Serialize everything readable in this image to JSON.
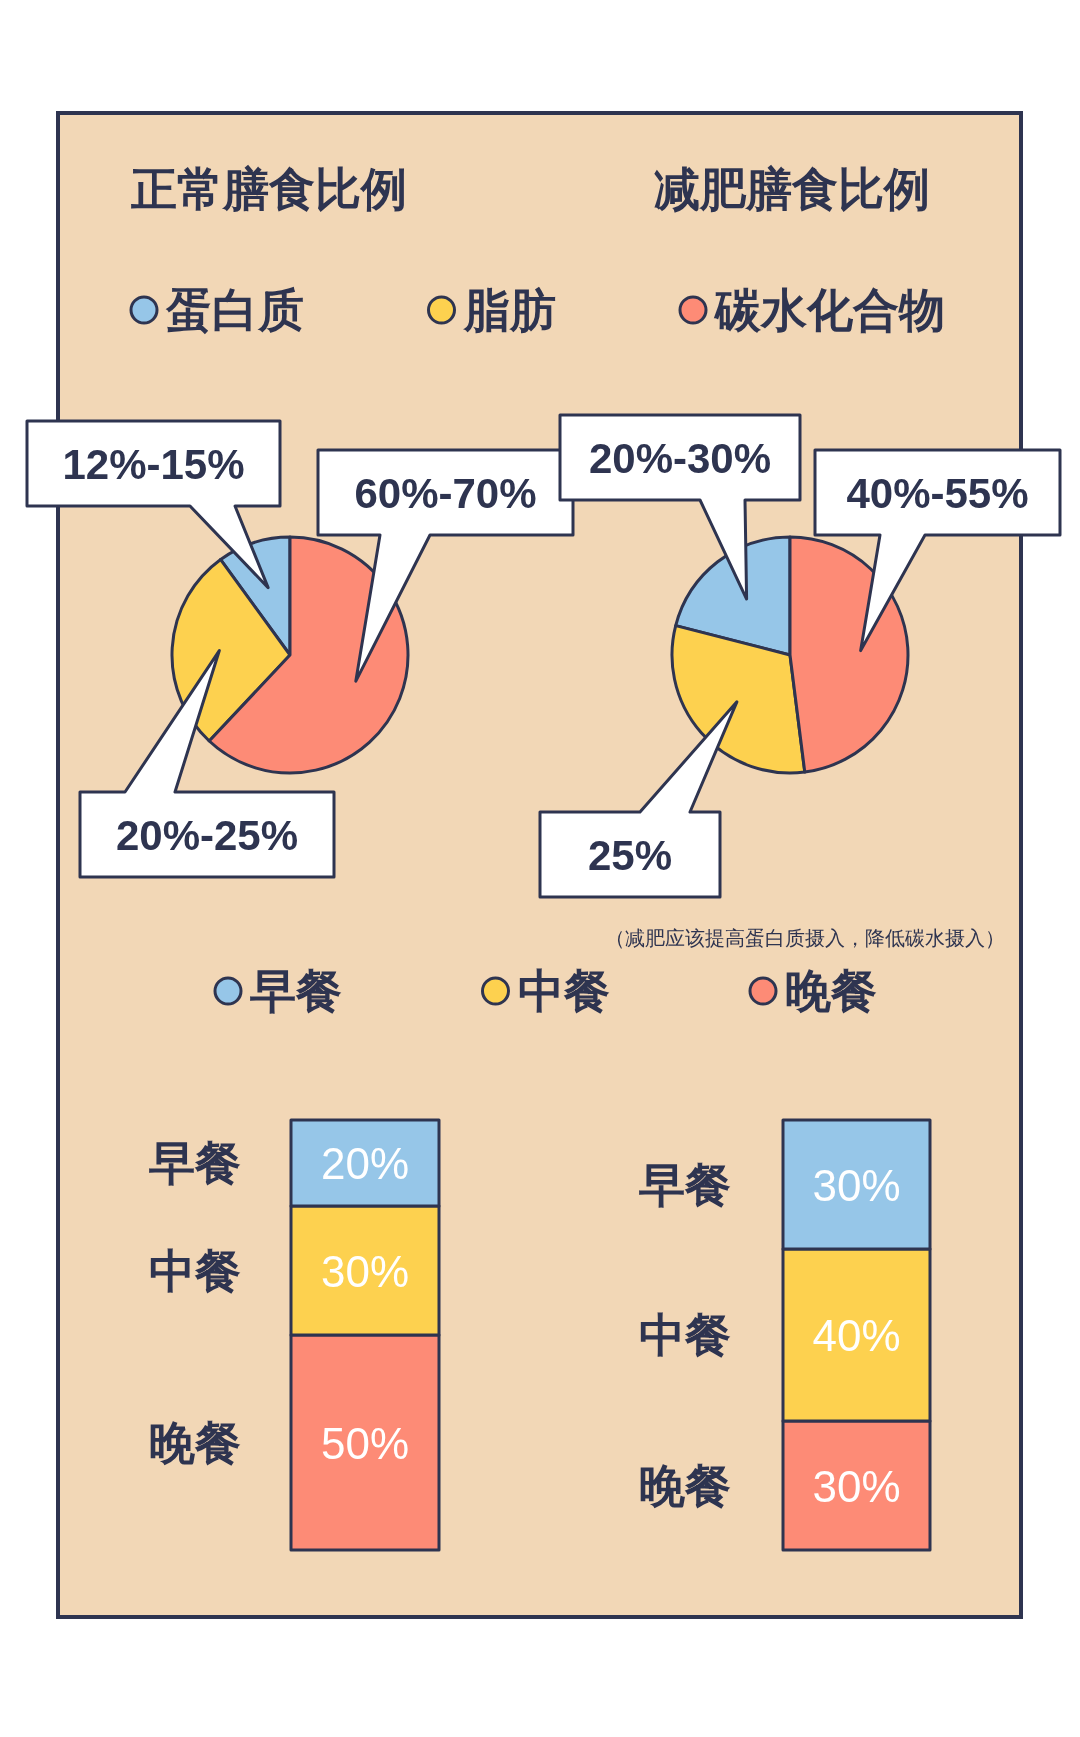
{
  "chart_data": [
    {
      "type": "pie",
      "title": "正常膳食比例",
      "categories": [
        "蛋白质",
        "脂肪",
        "碳水化合物"
      ],
      "values": [
        10,
        28,
        62
      ],
      "colors": [
        "#96c6e8",
        "#fdd14f",
        "#fd8b76"
      ],
      "annotations": [
        "12%-15%",
        "20%-25%",
        "60%-70%"
      ],
      "legend": "top"
    },
    {
      "type": "pie",
      "title": "减肥膳食比例",
      "categories": [
        null,
        null,
        null
      ],
      "values": [
        21,
        31,
        48
      ],
      "colors": [
        "#96c6e8",
        "#fdd14f",
        "#fd8b76"
      ],
      "annotations": [
        "20%-30%",
        "25%",
        "40%-55%",
        "（减肥应该提高蛋白质摄入，降低碳水摄入）"
      ]
    },
    {
      "type": "bar",
      "stacked": true,
      "categories": [
        null
      ],
      "legend": "top",
      "series": [
        {
          "name": "晚餐",
          "color": "#fd8b76",
          "values": [
            50
          ],
          "value_labels": [
            "50%"
          ]
        },
        {
          "name": "中餐",
          "color": "#fdd14f",
          "values": [
            30
          ],
          "value_labels": [
            "30%"
          ]
        },
        {
          "name": "早餐",
          "color": "#96c6e8",
          "values": [
            20
          ],
          "value_labels": [
            "20%"
          ]
        }
      ]
    },
    {
      "type": "bar",
      "stacked": true,
      "categories": [
        null
      ],
      "series": [
        {
          "name": "晚餐",
          "color": "#fd8b76",
          "values": [
            30
          ],
          "value_labels": [
            "30%"
          ]
        },
        {
          "name": "中餐",
          "color": "#fdd14f",
          "values": [
            40
          ],
          "value_labels": [
            "40%"
          ]
        },
        {
          "name": "早餐",
          "color": "#96c6e8",
          "values": [
            30
          ],
          "value_labels": [
            "30%"
          ]
        }
      ]
    }
  ]
}
